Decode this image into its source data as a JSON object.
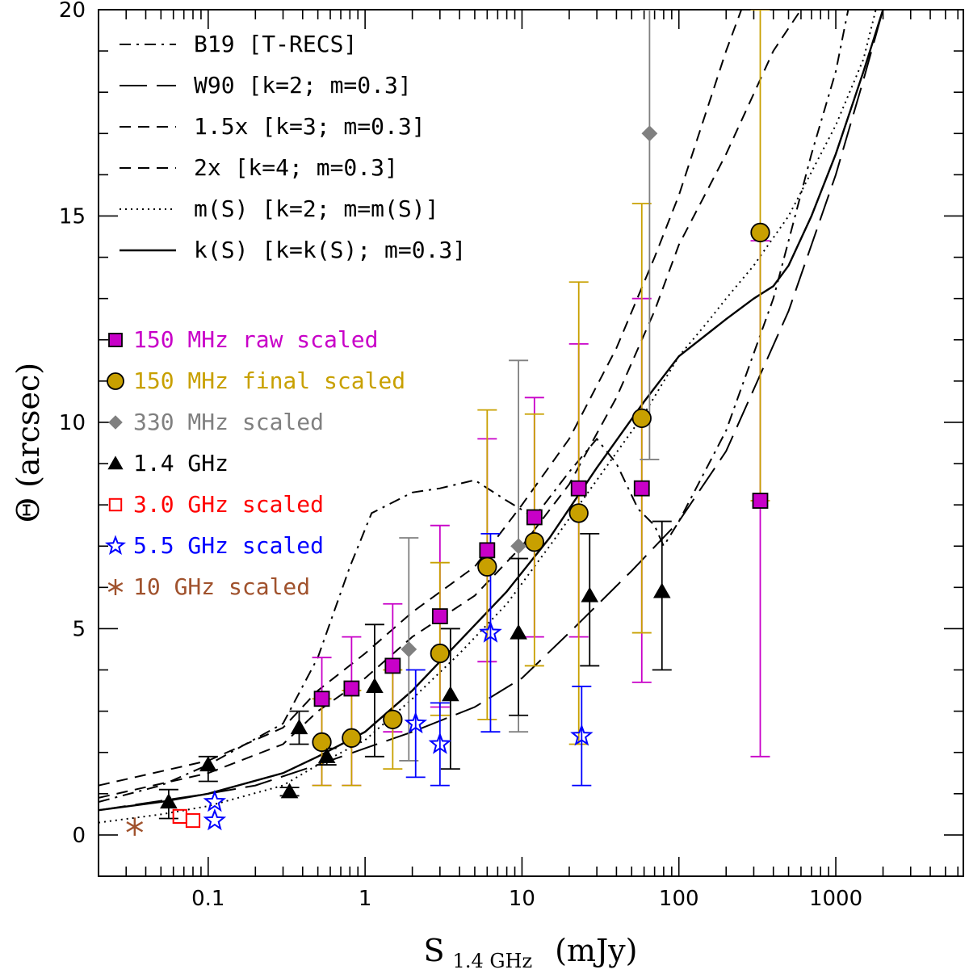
{
  "chart_data": {
    "type": "scatter",
    "title": "",
    "xlabel": "S",
    "xlabel_subscript": "1.4 GHz",
    "xlabel_unit": "(mJy)",
    "ylabel": "Θ (arcsec)",
    "xscale": "log",
    "xlim": [
      0.02,
      6500
    ],
    "ylim": [
      -1,
      20
    ],
    "x_ticks": [
      {
        "value": 0.1,
        "label": "0.1"
      },
      {
        "value": 1,
        "label": "1"
      },
      {
        "value": 10,
        "label": "10"
      },
      {
        "value": 100,
        "label": "100"
      },
      {
        "value": 1000,
        "label": "1000"
      }
    ],
    "y_ticks": [
      {
        "value": 0,
        "label": "0"
      },
      {
        "value": 5,
        "label": "5"
      },
      {
        "value": 10,
        "label": "10"
      },
      {
        "value": 15,
        "label": "15"
      },
      {
        "value": 20,
        "label": "20"
      }
    ],
    "legend_position": "top-left",
    "model_curves": [
      {
        "name": "B19 [T-RECS]",
        "style": "dashdot",
        "points": [
          [
            0.02,
            0.8
          ],
          [
            0.05,
            1.2
          ],
          [
            0.1,
            1.7
          ],
          [
            0.3,
            2.7
          ],
          [
            0.5,
            4.3
          ],
          [
            0.8,
            6.5
          ],
          [
            1.1,
            7.8
          ],
          [
            2,
            8.3
          ],
          [
            3,
            8.4
          ],
          [
            5,
            8.6
          ],
          [
            8,
            8.1
          ],
          [
            12,
            7.7
          ],
          [
            20,
            8.8
          ],
          [
            30,
            9.6
          ],
          [
            40,
            9.0
          ],
          [
            55,
            7.9
          ],
          [
            70,
            7.5
          ],
          [
            80,
            7.0
          ],
          [
            100,
            7.6
          ],
          [
            200,
            9.8
          ],
          [
            400,
            13
          ],
          [
            700,
            16.5
          ],
          [
            1000,
            18.5
          ],
          [
            1200,
            20
          ]
        ]
      },
      {
        "name": "W90 [k=2; m=0.3]",
        "style": "longdash",
        "points": [
          [
            0.02,
            0.6
          ],
          [
            0.1,
            1.0
          ],
          [
            0.2,
            1.2
          ],
          [
            0.5,
            1.7
          ],
          [
            1,
            2.1
          ],
          [
            2,
            2.5
          ],
          [
            5,
            3.1
          ],
          [
            10,
            3.8
          ],
          [
            20,
            4.9
          ],
          [
            50,
            6.4
          ],
          [
            100,
            7.6
          ],
          [
            200,
            9.3
          ],
          [
            300,
            10.8
          ],
          [
            500,
            12.7
          ],
          [
            1000,
            16
          ],
          [
            1500,
            18.3
          ],
          [
            2000,
            20
          ]
        ]
      },
      {
        "name": "1.5x [k=3; m=0.3]",
        "style": "dash",
        "points": [
          [
            0.02,
            0.9
          ],
          [
            0.1,
            1.5
          ],
          [
            0.3,
            2.2
          ],
          [
            0.5,
            3.0
          ],
          [
            1,
            3.8
          ],
          [
            2,
            4.8
          ],
          [
            5,
            5.8
          ],
          [
            10,
            7.0
          ],
          [
            20,
            8.5
          ],
          [
            40,
            10.6
          ],
          [
            70,
            12.7
          ],
          [
            100,
            14.3
          ],
          [
            200,
            16.5
          ],
          [
            400,
            19
          ],
          [
            600,
            20
          ]
        ]
      },
      {
        "name": "2x [k=4; m=0.3]",
        "style": "dash",
        "points": [
          [
            0.02,
            1.2
          ],
          [
            0.1,
            1.8
          ],
          [
            0.3,
            2.6
          ],
          [
            0.5,
            3.5
          ],
          [
            1,
            4.4
          ],
          [
            2,
            5.4
          ],
          [
            5,
            6.5
          ],
          [
            10,
            8.0
          ],
          [
            20,
            9.6
          ],
          [
            40,
            11.8
          ],
          [
            70,
            14.0
          ],
          [
            100,
            15.5
          ],
          [
            200,
            19
          ],
          [
            250,
            20
          ]
        ]
      },
      {
        "name": "m(S) [k=2; m=m(S)]",
        "style": "dot",
        "points": [
          [
            0.02,
            0.3
          ],
          [
            0.05,
            0.5
          ],
          [
            0.1,
            0.7
          ],
          [
            0.3,
            1.2
          ],
          [
            0.5,
            1.7
          ],
          [
            1,
            2.3
          ],
          [
            2,
            3.3
          ],
          [
            4,
            4.4
          ],
          [
            8,
            5.6
          ],
          [
            15,
            7.0
          ],
          [
            30,
            8.6
          ],
          [
            60,
            10.2
          ],
          [
            100,
            11.6
          ],
          [
            150,
            12.4
          ],
          [
            200,
            13.0
          ],
          [
            300,
            13.8
          ],
          [
            500,
            15.0
          ],
          [
            1000,
            17.2
          ],
          [
            1500,
            18.8
          ],
          [
            1800,
            20
          ]
        ]
      },
      {
        "name": "k(S) [k=k(S); m=0.3]",
        "style": "solid",
        "points": [
          [
            0.02,
            0.6
          ],
          [
            0.05,
            0.8
          ],
          [
            0.1,
            1.0
          ],
          [
            0.3,
            1.5
          ],
          [
            0.5,
            1.9
          ],
          [
            1,
            2.5
          ],
          [
            2,
            3.5
          ],
          [
            4,
            4.7
          ],
          [
            8,
            5.9
          ],
          [
            15,
            7.2
          ],
          [
            30,
            8.9
          ],
          [
            60,
            10.5
          ],
          [
            100,
            11.6
          ],
          [
            200,
            12.5
          ],
          [
            300,
            13.0
          ],
          [
            400,
            13.3
          ],
          [
            500,
            13.8
          ],
          [
            700,
            15
          ],
          [
            1000,
            16.5
          ],
          [
            1500,
            18.5
          ],
          [
            2000,
            20
          ]
        ]
      }
    ],
    "series": [
      {
        "name": "150 MHz raw scaled",
        "color": "#c800c8",
        "marker": "square-filled",
        "points": [
          {
            "x": 0.53,
            "y": 3.3,
            "ylow": 1.2,
            "yhigh": 4.3
          },
          {
            "x": 0.82,
            "y": 3.55,
            "ylow": 1.2,
            "yhigh": 4.8
          },
          {
            "x": 1.5,
            "y": 4.1,
            "ylow": 2.5,
            "yhigh": 5.6
          },
          {
            "x": 3.0,
            "y": 5.3,
            "ylow": 3.1,
            "yhigh": 7.5
          },
          {
            "x": 6.0,
            "y": 6.9,
            "ylow": 4.2,
            "yhigh": 9.6
          },
          {
            "x": 12.0,
            "y": 7.7,
            "ylow": 4.8,
            "yhigh": 10.6
          },
          {
            "x": 23.0,
            "y": 8.4,
            "ylow": 4.8,
            "yhigh": 11.9
          },
          {
            "x": 58.0,
            "y": 8.4,
            "ylow": 3.7,
            "yhigh": 13.0
          },
          {
            "x": 330.0,
            "y": 8.1,
            "ylow": 1.9,
            "yhigh": 14.4
          }
        ]
      },
      {
        "name": "150 MHz final scaled",
        "color": "#c8a000",
        "marker": "circle-filled",
        "points": [
          {
            "x": 0.53,
            "y": 2.25,
            "ylow": 1.2,
            "yhigh": 3.3
          },
          {
            "x": 0.82,
            "y": 2.35,
            "ylow": 1.2,
            "yhigh": 3.5
          },
          {
            "x": 1.5,
            "y": 2.8,
            "ylow": 1.6,
            "yhigh": 4.0
          },
          {
            "x": 3.0,
            "y": 4.4,
            "ylow": 2.9,
            "yhigh": 6.6
          },
          {
            "x": 6.0,
            "y": 6.5,
            "ylow": 2.8,
            "yhigh": 10.3
          },
          {
            "x": 12.0,
            "y": 7.1,
            "ylow": 4.1,
            "yhigh": 10.2
          },
          {
            "x": 23.0,
            "y": 7.8,
            "ylow": 2.2,
            "yhigh": 13.4
          },
          {
            "x": 58.0,
            "y": 10.1,
            "ylow": 4.9,
            "yhigh": 15.3
          },
          {
            "x": 330.0,
            "y": 14.6,
            "ylow": 8.1,
            "yhigh": 20.0
          }
        ]
      },
      {
        "name": "330 MHz scaled",
        "color": "#808080",
        "marker": "diamond-filled",
        "points": [
          {
            "x": 1.9,
            "y": 4.5,
            "ylow": 1.8,
            "yhigh": 7.2
          },
          {
            "x": 9.5,
            "y": 7.0,
            "ylow": 2.5,
            "yhigh": 11.5
          },
          {
            "x": 65.0,
            "y": 17.0,
            "ylow": 9.1,
            "yhigh": 20.0
          }
        ]
      },
      {
        "name": "1.4 GHz",
        "color": "#000000",
        "marker": "triangle-filled",
        "points": [
          {
            "x": 0.056,
            "y": 0.8,
            "ylow": 0.4,
            "yhigh": 1.1
          },
          {
            "x": 0.1,
            "y": 1.7,
            "ylow": 1.3,
            "yhigh": 1.9
          },
          {
            "x": 0.33,
            "y": 1.05,
            "ylow": 0.95,
            "yhigh": 1.15
          },
          {
            "x": 0.38,
            "y": 2.6,
            "ylow": 2.2,
            "yhigh": 3.0
          },
          {
            "x": 0.57,
            "y": 1.9,
            "ylow": 1.7,
            "yhigh": 2.1
          },
          {
            "x": 1.15,
            "y": 3.6,
            "ylow": 1.9,
            "yhigh": 5.1
          },
          {
            "x": 3.5,
            "y": 3.4,
            "ylow": 1.6,
            "yhigh": 5.0
          },
          {
            "x": 9.5,
            "y": 4.9,
            "ylow": 2.9,
            "yhigh": 6.7
          },
          {
            "x": 27.0,
            "y": 5.8,
            "ylow": 4.1,
            "yhigh": 7.3
          },
          {
            "x": 78.0,
            "y": 5.9,
            "ylow": 4.0,
            "yhigh": 7.6
          }
        ]
      },
      {
        "name": "3.0 GHz scaled",
        "color": "#ff0000",
        "marker": "square-open",
        "points": [
          {
            "x": 0.066,
            "y": 0.45
          },
          {
            "x": 0.08,
            "y": 0.35
          }
        ]
      },
      {
        "name": "5.5 GHz scaled",
        "color": "#0000ff",
        "marker": "star-open",
        "points": [
          {
            "x": 0.11,
            "y": 0.8
          },
          {
            "x": 0.11,
            "y": 0.35
          },
          {
            "x": 2.1,
            "y": 2.7,
            "ylow": 1.4,
            "yhigh": 4.0
          },
          {
            "x": 3.0,
            "y": 2.2,
            "ylow": 1.2,
            "yhigh": 3.2
          },
          {
            "x": 6.3,
            "y": 4.9,
            "ylow": 2.5,
            "yhigh": 7.3
          },
          {
            "x": 24.0,
            "y": 2.4,
            "ylow": 1.2,
            "yhigh": 3.6
          }
        ]
      },
      {
        "name": "10 GHz scaled",
        "color": "#a0522d",
        "marker": "asterisk",
        "points": [
          {
            "x": 0.034,
            "y": 0.2
          }
        ]
      }
    ]
  }
}
